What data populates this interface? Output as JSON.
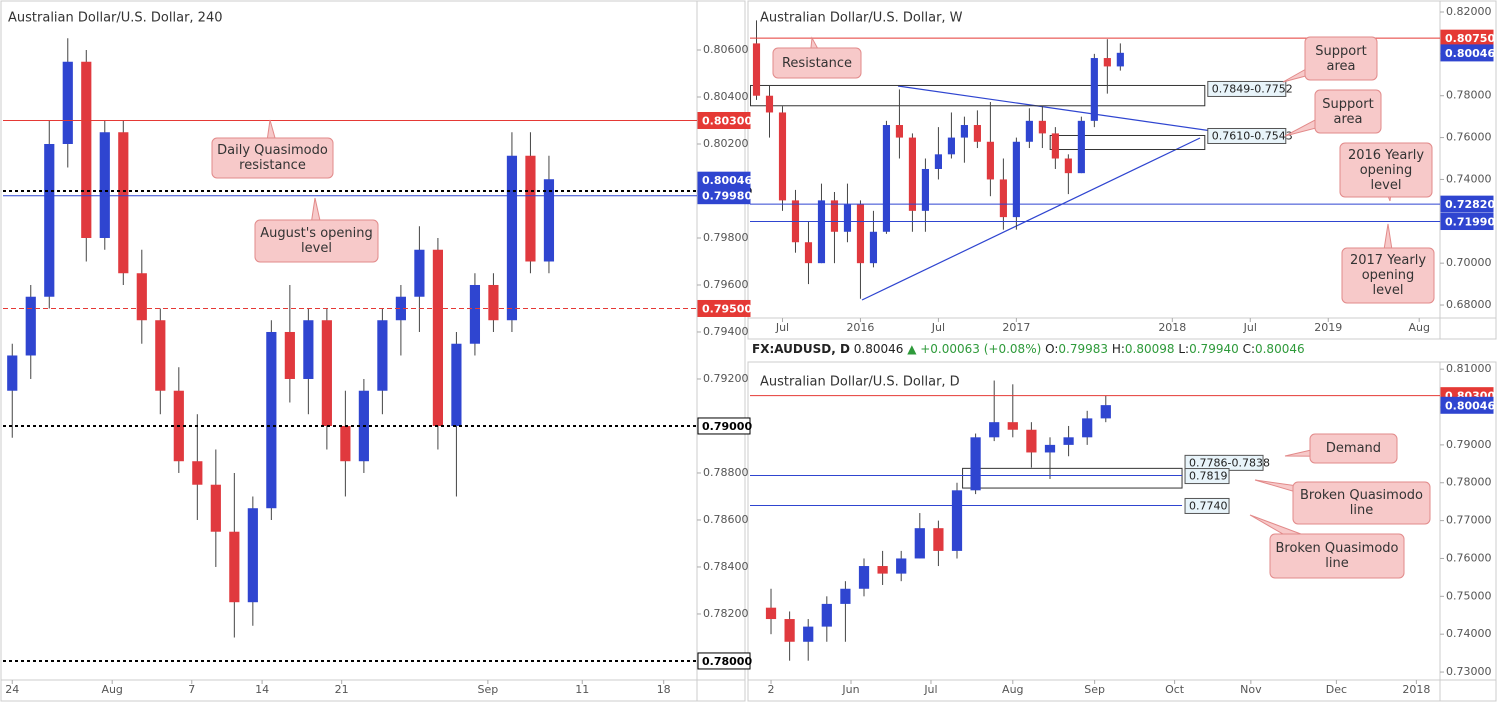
{
  "header": {
    "symbol": "FX:AUDUSD, D",
    "price": "0.80046",
    "change": "▲ +0.00063 (+0.08%)",
    "open_label": "O:",
    "open": "0.79983",
    "high_label": "H:",
    "high": "0.80098",
    "low_label": "L:",
    "low": "0.79940",
    "close_label": "C:",
    "close": "0.80046"
  },
  "chart_data": [
    {
      "type": "candlestick",
      "title": "Australian Dollar/U.S. Dollar, 240",
      "up_color": "#2f45d0",
      "down_color": "#e0393e",
      "ylim": [
        0.77919,
        0.808
      ],
      "yticks": [
        {
          "value": 0.782,
          "label": "0.78200"
        },
        {
          "value": 0.784,
          "label": "0.78400"
        },
        {
          "value": 0.786,
          "label": "0.78600"
        },
        {
          "value": 0.788,
          "label": "0.78800"
        },
        {
          "value": 0.79,
          "label": "0.79000"
        },
        {
          "value": 0.792,
          "label": "0.79200"
        },
        {
          "value": 0.794,
          "label": "0.79400"
        },
        {
          "value": 0.796,
          "label": "0.79600"
        },
        {
          "value": 0.798,
          "label": "0.79800"
        },
        {
          "value": 0.8,
          "label": "0.80000"
        },
        {
          "value": 0.802,
          "label": "0.80200"
        },
        {
          "value": 0.804,
          "label": "0.80400"
        },
        {
          "value": 0.806,
          "label": "0.80600"
        }
      ],
      "xlim": [
        -0.5,
        37
      ],
      "xticks": [
        {
          "value": 0,
          "label": "24"
        },
        {
          "value": 5.4,
          "label": "Aug"
        },
        {
          "value": 9.7,
          "label": "7"
        },
        {
          "value": 13.5,
          "label": "14"
        },
        {
          "value": 17.8,
          "label": "21"
        },
        {
          "value": 25.7,
          "label": "Sep"
        },
        {
          "value": 30.8,
          "label": "11"
        },
        {
          "value": 35.2,
          "label": "18"
        }
      ],
      "candles": [
        [
          0,
          0.7915,
          0.7935,
          0.7895,
          0.793
        ],
        [
          1,
          0.793,
          0.796,
          0.792,
          0.7955
        ],
        [
          2,
          0.7955,
          0.803,
          0.795,
          0.802
        ],
        [
          3,
          0.802,
          0.8065,
          0.801,
          0.8055
        ],
        [
          4,
          0.8055,
          0.806,
          0.797,
          0.798
        ],
        [
          5,
          0.798,
          0.803,
          0.7975,
          0.8025
        ],
        [
          6,
          0.8025,
          0.803,
          0.796,
          0.7965
        ],
        [
          7,
          0.7965,
          0.7975,
          0.7935,
          0.7945
        ],
        [
          8,
          0.7945,
          0.795,
          0.7905,
          0.7915
        ],
        [
          9,
          0.7915,
          0.7925,
          0.788,
          0.7885
        ],
        [
          10,
          0.7885,
          0.7905,
          0.786,
          0.7875
        ],
        [
          11,
          0.7875,
          0.789,
          0.784,
          0.7855
        ],
        [
          12,
          0.7855,
          0.788,
          0.781,
          0.7825
        ],
        [
          13,
          0.7825,
          0.787,
          0.7815,
          0.7865
        ],
        [
          14,
          0.7865,
          0.7945,
          0.786,
          0.794
        ],
        [
          15,
          0.794,
          0.796,
          0.791,
          0.792
        ],
        [
          16,
          0.792,
          0.795,
          0.7905,
          0.7945
        ],
        [
          17,
          0.7945,
          0.795,
          0.789,
          0.79
        ],
        [
          18,
          0.79,
          0.7915,
          0.787,
          0.7885
        ],
        [
          19,
          0.7885,
          0.792,
          0.788,
          0.7915
        ],
        [
          20,
          0.7915,
          0.795,
          0.7905,
          0.7945
        ],
        [
          21,
          0.7945,
          0.796,
          0.793,
          0.7955
        ],
        [
          22,
          0.7955,
          0.7985,
          0.794,
          0.7975
        ],
        [
          23,
          0.7975,
          0.798,
          0.789,
          0.79
        ],
        [
          24,
          0.79,
          0.794,
          0.787,
          0.7935
        ],
        [
          25,
          0.7935,
          0.7965,
          0.793,
          0.796
        ],
        [
          26,
          0.796,
          0.7965,
          0.794,
          0.7945
        ],
        [
          27,
          0.7945,
          0.8025,
          0.794,
          0.8015
        ],
        [
          28,
          0.8015,
          0.8025,
          0.7965,
          0.797
        ],
        [
          29,
          0.797,
          0.8015,
          0.7965,
          0.8005
        ]
      ],
      "levels": [
        {
          "value": 0.803,
          "label": "0.80300",
          "color": "#e53935",
          "style": "solid"
        },
        {
          "value": 0.8,
          "label": "0.80000",
          "color": "#000000",
          "style": "dotted"
        },
        {
          "value": 0.7998,
          "label": "0.79980",
          "color": "#2f45d0",
          "style": "solid"
        },
        {
          "value": 0.80046,
          "label": "0.80046",
          "color": "#2f45d0",
          "style": "none"
        },
        {
          "value": 0.795,
          "label": "0.79500",
          "color": "#e53935",
          "style": "dashed"
        },
        {
          "value": 0.79,
          "label": "0.79000",
          "color": "#000000",
          "style": "dotted"
        },
        {
          "value": 0.78,
          "label": "0.78000",
          "color": "#000000",
          "style": "dotted"
        }
      ],
      "zones": [],
      "annotations": [
        "Daily Quasimodo resistance",
        "August's opening level"
      ]
    },
    {
      "type": "candlestick",
      "title": "Australian Dollar/U.S. Dollar, W",
      "up_color": "#2f45d0",
      "down_color": "#e0393e",
      "ylim": [
        0.6738,
        0.8243
      ],
      "yticks": [
        {
          "value": 0.68,
          "label": "0.68000"
        },
        {
          "value": 0.7,
          "label": "0.70000"
        },
        {
          "value": 0.72,
          "label": "0.72000"
        },
        {
          "value": 0.74,
          "label": "0.74000"
        },
        {
          "value": 0.76,
          "label": "0.76000"
        },
        {
          "value": 0.78,
          "label": "0.78000"
        },
        {
          "value": 0.8,
          "label": "0.80000"
        },
        {
          "value": 0.82,
          "label": "0.82000"
        }
      ],
      "xlim": [
        -8.5,
        44.6
      ],
      "xticks": [
        {
          "value": -6,
          "label": "Jul"
        },
        {
          "value": 0,
          "label": "2016"
        },
        {
          "value": 6,
          "label": "Jul"
        },
        {
          "value": 12,
          "label": "2017"
        },
        {
          "value": 24,
          "label": "2018"
        },
        {
          "value": 30,
          "label": "Jul"
        },
        {
          "value": 36,
          "label": "2019"
        },
        {
          "value": 43,
          "label": "Aug"
        }
      ],
      "candles": [
        [
          -8,
          0.805,
          0.816,
          0.778,
          0.78
        ],
        [
          -7,
          0.78,
          0.785,
          0.76,
          0.772
        ],
        [
          -6,
          0.772,
          0.775,
          0.725,
          0.73
        ],
        [
          -5,
          0.73,
          0.735,
          0.705,
          0.71
        ],
        [
          -4,
          0.71,
          0.72,
          0.69,
          0.7
        ],
        [
          -3,
          0.7,
          0.738,
          0.7,
          0.73
        ],
        [
          -2,
          0.73,
          0.734,
          0.7,
          0.715
        ],
        [
          -1,
          0.715,
          0.738,
          0.71,
          0.728
        ],
        [
          0,
          0.728,
          0.73,
          0.683,
          0.7
        ],
        [
          1,
          0.7,
          0.725,
          0.698,
          0.715
        ],
        [
          2,
          0.715,
          0.768,
          0.714,
          0.766
        ],
        [
          3,
          0.766,
          0.783,
          0.75,
          0.76
        ],
        [
          4,
          0.76,
          0.762,
          0.715,
          0.725
        ],
        [
          5,
          0.725,
          0.75,
          0.715,
          0.745
        ],
        [
          6,
          0.745,
          0.765,
          0.74,
          0.752
        ],
        [
          7,
          0.752,
          0.772,
          0.75,
          0.76
        ],
        [
          8,
          0.76,
          0.77,
          0.748,
          0.766
        ],
        [
          9,
          0.766,
          0.773,
          0.755,
          0.758
        ],
        [
          10,
          0.758,
          0.777,
          0.732,
          0.74
        ],
        [
          11,
          0.74,
          0.75,
          0.716,
          0.722
        ],
        [
          12,
          0.722,
          0.76,
          0.716,
          0.758
        ],
        [
          13,
          0.758,
          0.774,
          0.755,
          0.768
        ],
        [
          14,
          0.768,
          0.775,
          0.755,
          0.762
        ],
        [
          15,
          0.762,
          0.765,
          0.745,
          0.75
        ],
        [
          16,
          0.75,
          0.752,
          0.733,
          0.743
        ],
        [
          17,
          0.743,
          0.77,
          0.743,
          0.768
        ],
        [
          18,
          0.768,
          0.8,
          0.765,
          0.798
        ],
        [
          19,
          0.798,
          0.807,
          0.781,
          0.794
        ],
        [
          20,
          0.794,
          0.805,
          0.792,
          0.8005
        ]
      ],
      "levels": [
        {
          "value": 0.8075,
          "label": "0.80750",
          "color": "#e53935",
          "style": "solid"
        },
        {
          "value": 0.80046,
          "label": "0.80046",
          "color": "#2f45d0",
          "style": "none"
        },
        {
          "value": 0.7282,
          "label": "0.72820",
          "color": "#2f45d0",
          "style": "solid"
        },
        {
          "value": 0.7199,
          "label": "0.71990",
          "color": "#2f45d0",
          "style": "solid"
        }
      ],
      "zones": [
        {
          "label": "0.7849-0.7752",
          "high": 0.7849,
          "low": 0.7752,
          "x": [
            -8.46,
            26.5
          ]
        },
        {
          "label": "0.7610-0.7543",
          "high": 0.761,
          "low": 0.7543,
          "x": [
            14.6,
            26.5
          ]
        }
      ],
      "annotations": [
        "Resistance",
        "Support area",
        "Support area",
        "2016 Yearly opening level",
        "2017 Yearly opening level"
      ]
    },
    {
      "type": "candlestick",
      "title": "Australian Dollar/U.S. Dollar, D",
      "up_color": "#2f45d0",
      "down_color": "#e0393e",
      "ylim": [
        0.7279,
        0.8111
      ],
      "yticks": [
        {
          "value": 0.73,
          "label": "0.73000"
        },
        {
          "value": 0.74,
          "label": "0.74000"
        },
        {
          "value": 0.75,
          "label": "0.75000"
        },
        {
          "value": 0.76,
          "label": "0.76000"
        },
        {
          "value": 0.77,
          "label": "0.77000"
        },
        {
          "value": 0.78,
          "label": "0.78000"
        },
        {
          "value": 0.79,
          "label": "0.79000"
        },
        {
          "value": 0.8,
          "label": "0.80000"
        },
        {
          "value": 0.81,
          "label": "0.81000"
        }
      ],
      "xlim": [
        -1.13,
        35.97
      ],
      "xticks": [
        {
          "value": 0,
          "label": "2"
        },
        {
          "value": 4.3,
          "label": "Jun"
        },
        {
          "value": 8.6,
          "label": "Jul"
        },
        {
          "value": 13,
          "label": "Aug"
        },
        {
          "value": 17.4,
          "label": "Sep"
        },
        {
          "value": 21.7,
          "label": "Oct"
        },
        {
          "value": 25.8,
          "label": "Nov"
        },
        {
          "value": 30.4,
          "label": "Dec"
        },
        {
          "value": 34.7,
          "label": "2018"
        }
      ],
      "candles": [
        [
          0,
          0.747,
          0.752,
          0.74,
          0.744
        ],
        [
          1,
          0.744,
          0.746,
          0.733,
          0.738
        ],
        [
          2,
          0.738,
          0.744,
          0.733,
          0.742
        ],
        [
          3,
          0.742,
          0.75,
          0.738,
          0.748
        ],
        [
          4,
          0.748,
          0.754,
          0.738,
          0.752
        ],
        [
          5,
          0.752,
          0.76,
          0.75,
          0.758
        ],
        [
          6,
          0.758,
          0.762,
          0.753,
          0.756
        ],
        [
          7,
          0.756,
          0.762,
          0.754,
          0.76
        ],
        [
          8,
          0.76,
          0.772,
          0.76,
          0.768
        ],
        [
          9,
          0.768,
          0.77,
          0.758,
          0.762
        ],
        [
          10,
          0.762,
          0.78,
          0.76,
          0.778
        ],
        [
          11,
          0.778,
          0.793,
          0.777,
          0.792
        ],
        [
          12,
          0.792,
          0.807,
          0.791,
          0.796
        ],
        [
          13,
          0.796,
          0.806,
          0.792,
          0.794
        ],
        [
          14,
          0.794,
          0.796,
          0.784,
          0.788
        ],
        [
          15,
          0.788,
          0.792,
          0.781,
          0.79
        ],
        [
          16,
          0.79,
          0.795,
          0.787,
          0.792
        ],
        [
          17,
          0.792,
          0.799,
          0.79,
          0.797
        ],
        [
          18,
          0.797,
          0.803,
          0.796,
          0.8005
        ]
      ],
      "levels": [
        {
          "value": 0.803,
          "label": "0.80300",
          "color": "#e53935",
          "style": "solid"
        },
        {
          "value": 0.80046,
          "label": "0.80046",
          "color": "#2f45d0",
          "style": "none"
        },
        {
          "value": 0.7819,
          "label": "0.7819",
          "color": "#2f45d0",
          "style": "solid",
          "end": 22.1
        },
        {
          "value": 0.774,
          "label": "0.7740",
          "color": "#2f45d0",
          "style": "solid",
          "end": 22.1
        }
      ],
      "zones": [
        {
          "label": "0.7786-0.7838",
          "high": 0.7838,
          "low": 0.7786,
          "x": [
            10.3,
            22.1
          ]
        }
      ],
      "annotations": [
        "Demand",
        "Broken Quasimodo line",
        "Broken Quasimodo line"
      ]
    }
  ]
}
